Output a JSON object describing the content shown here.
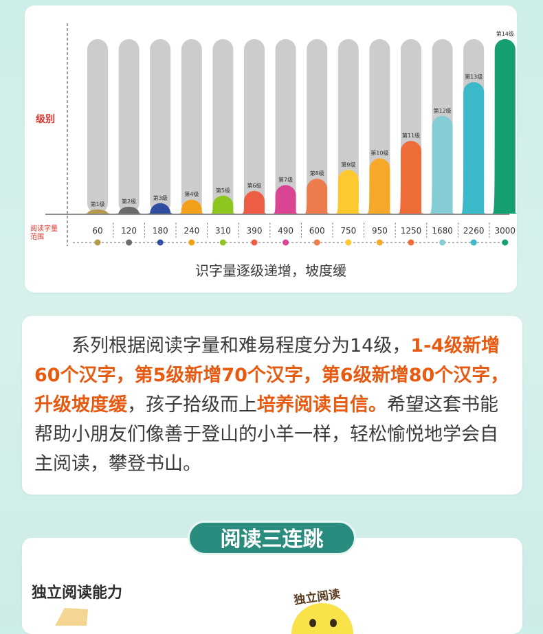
{
  "chart_data": {
    "type": "bar",
    "ylabel": "级别",
    "xlabel": "阅读字量范围",
    "caption": "识字量逐级递增，坡度缓",
    "categories": [
      "第1级",
      "第2级",
      "第3级",
      "第4级",
      "第5级",
      "第6级",
      "第7级",
      "第8级",
      "第9级",
      "第10级",
      "第11级",
      "第12级",
      "第13级",
      "第14级"
    ],
    "values": [
      60,
      120,
      180,
      240,
      310,
      390,
      490,
      600,
      750,
      950,
      1250,
      1680,
      2260,
      3000
    ],
    "colors": [
      "#b59a4e",
      "#6b6b6b",
      "#2e4da0",
      "#f2a01c",
      "#8dc61f",
      "#ec5d44",
      "#d94592",
      "#ec7c4c",
      "#fcc930",
      "#f5a82a",
      "#ed6c38",
      "#85cdd4",
      "#3bb9c8",
      "#16a072"
    ],
    "ylim": [
      0,
      3000
    ]
  },
  "description": {
    "s1": "系列根据阅读字量和难易程度分为14级，",
    "s2": "1-4级新增60个汉字，第5级新增70个汉字，第6级新增80个汉字，升级坡度缓",
    "s3": "，孩子拾级而上",
    "s4": "培养阅读自信。",
    "s5": "希望这套书能帮助小朋友们像善于登山的小羊一样，轻松愉悦地学会自主阅读，攀登书山。"
  },
  "section": {
    "title": "阅读三连跳",
    "ability_title": "独立阅读能力",
    "badge_label": "独立阅读"
  }
}
